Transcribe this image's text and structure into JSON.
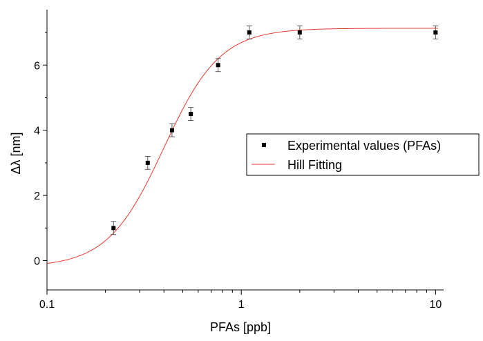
{
  "chart_data": {
    "type": "scatter",
    "xlabel": "PFAs [ppb]",
    "ylabel": "Δλ [nm]",
    "x_scale": "log",
    "xlim": [
      0.1,
      11
    ],
    "ylim": [
      -0.9,
      7.7
    ],
    "x_ticks": [
      {
        "value": 0.1,
        "label": "0.1"
      },
      {
        "value": 1,
        "label": "1"
      },
      {
        "value": 10,
        "label": "10"
      }
    ],
    "y_ticks": [
      {
        "value": 0,
        "label": "0"
      },
      {
        "value": 2,
        "label": "2"
      },
      {
        "value": 4,
        "label": "4"
      },
      {
        "value": 6,
        "label": "6"
      }
    ],
    "legend_position": "right",
    "grid": false,
    "series": [
      {
        "name": "Experimental values (PFAs)",
        "kind": "scatter",
        "color": "#000000",
        "x": [
          0.22,
          0.33,
          0.44,
          0.55,
          0.76,
          1.1,
          2.0,
          10.0
        ],
        "y": [
          1.0,
          3.0,
          4.0,
          4.5,
          6.0,
          7.0,
          7.0,
          7.0
        ],
        "error": [
          0.2,
          0.2,
          0.2,
          0.2,
          0.2,
          0.2,
          0.2,
          0.2
        ]
      },
      {
        "name": "Hill Fitting",
        "kind": "line",
        "color": "#e8382f",
        "model": "hill",
        "params": {
          "start": -0.2,
          "end": 7.13,
          "k": 0.4,
          "n": 3.0
        }
      }
    ]
  }
}
